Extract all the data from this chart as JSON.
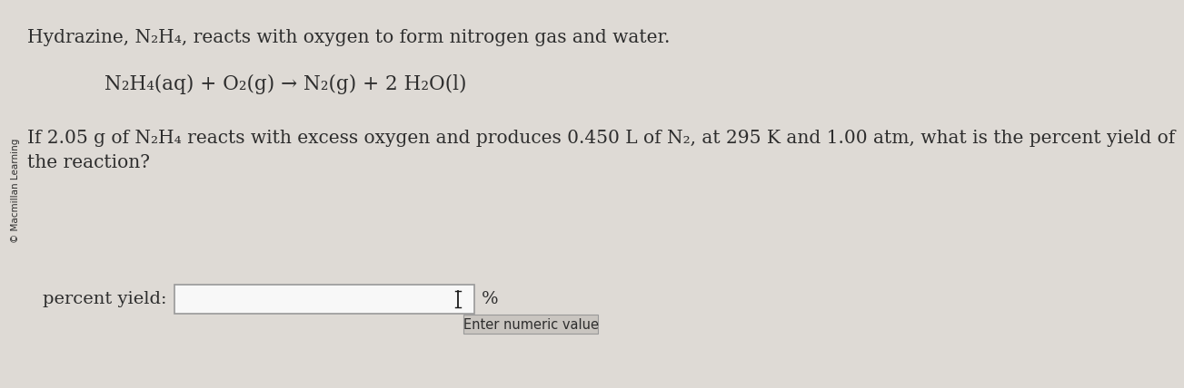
{
  "background_color": "#dedad5",
  "sidebar_text": "© Macmillan Learning",
  "line1": "Hydrazine, N₂H₄, reacts with oxygen to form nitrogen gas and water.",
  "equation": "N₂H₄(aq) + O₂(g) → N₂(g) + 2 H₂O(l)",
  "line3a": "If 2.05 g of N₂H₄ reacts with excess oxygen and produces 0.450 L of N₂, at 295 K and 1.00 atm, what is the percent yield of",
  "line3b": "the reaction?",
  "label": "percent yield:",
  "percent_sign": "%",
  "tooltip": "Enter numeric value",
  "text_color": "#2d2d2d",
  "box_bg": "#f8f8f8",
  "box_border": "#999999",
  "tooltip_bg": "#c9c5c0",
  "tooltip_border": "#999999",
  "cursor_color": "#1a1a1a",
  "font_size_main": 14.5,
  "font_size_eq": 15.5,
  "font_size_label": 14.0,
  "font_size_tooltip": 10.5,
  "font_size_percent": 14.0
}
